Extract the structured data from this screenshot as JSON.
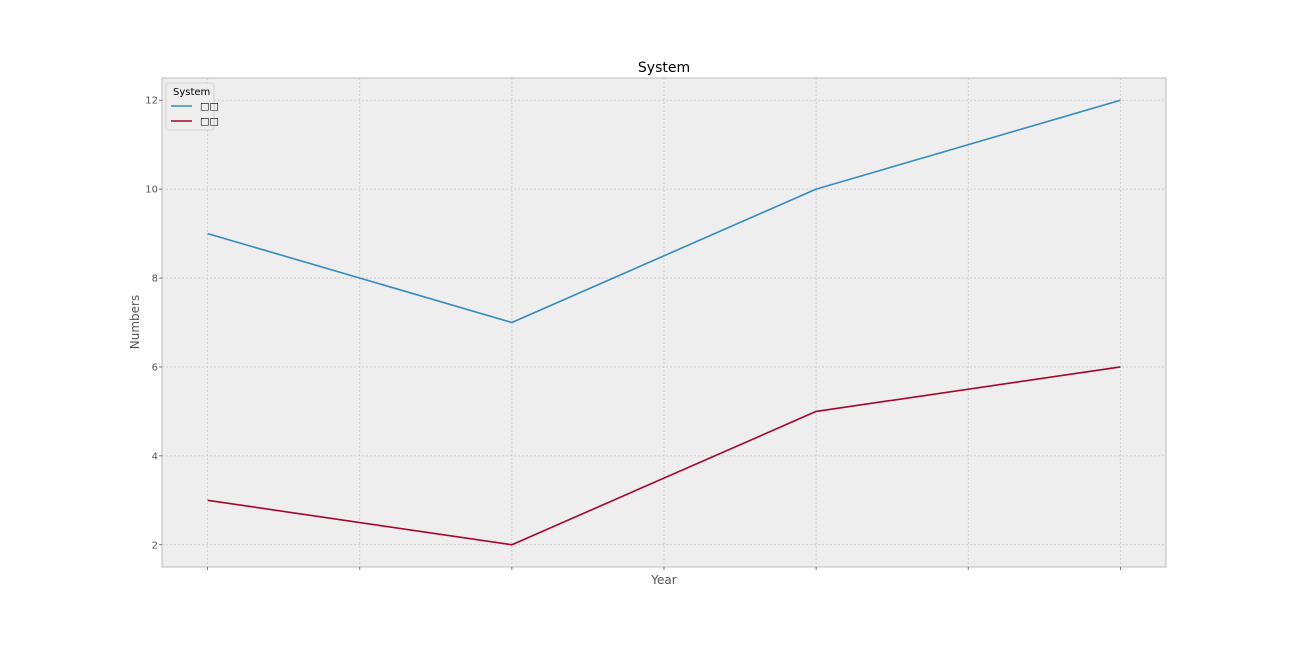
{
  "chart_data": {
    "type": "line",
    "title": "System",
    "xlabel": "Year",
    "ylabel": "Numbers",
    "x": [
      0,
      1,
      2,
      3
    ],
    "xlim": [
      -0.15,
      3.15
    ],
    "ylim": [
      1.5,
      12.5
    ],
    "yticks": [
      2,
      4,
      6,
      8,
      10,
      12
    ],
    "xticks": [
      0,
      0.5,
      1,
      1.5,
      2,
      2.5,
      3
    ],
    "legend_title": "System",
    "legend_position": "top-left",
    "grid": true,
    "series": [
      {
        "name": "□□",
        "values": [
          9,
          7,
          10,
          12
        ],
        "color": "#348ABD"
      },
      {
        "name": "□□",
        "values": [
          3,
          2,
          5,
          6
        ],
        "color": "#A60628"
      }
    ],
    "background_color": "#EEEEEE"
  }
}
